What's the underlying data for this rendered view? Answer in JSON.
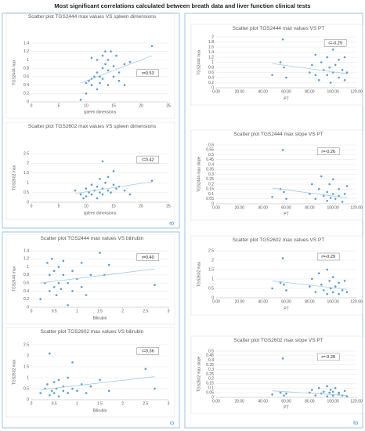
{
  "title": "Most significant correlations calculated between breath data and liver function clinical tests",
  "panels": [
    "a)",
    "b)",
    "c)"
  ],
  "chart_data": [
    {
      "type": "scatter",
      "title": "Scatter plot TGS2444 max values VS spleen dimensions",
      "xlabel": "spleen dimensions",
      "ylabel": "TGS2444 max",
      "annotation": "r=0.53",
      "color": "#5b9bd5",
      "trendline_color": "#9dc3e6",
      "xlim": [
        0,
        25
      ],
      "xticks": [
        0,
        5,
        10,
        15,
        20,
        25
      ],
      "ylim": [
        0,
        1.4
      ],
      "yticks": [
        0,
        0.2,
        0.4,
        0.6,
        0.8,
        1,
        1.2,
        1.4
      ],
      "x": [
        9,
        10,
        10,
        10.5,
        11,
        11,
        11,
        11.5,
        12,
        12,
        12,
        12.5,
        12.5,
        13,
        13,
        13,
        13.5,
        13.5,
        14,
        14,
        14,
        14.5,
        15,
        15,
        15.5,
        16,
        16,
        17,
        17,
        18,
        22
      ],
      "values": [
        0.05,
        0.2,
        0.45,
        0.5,
        0.55,
        0.4,
        1.05,
        0.6,
        0.3,
        0.7,
        1.0,
        0.45,
        0.6,
        0.8,
        1.1,
        0.55,
        0.9,
        1.2,
        0.75,
        1.0,
        0.4,
        1.2,
        0.85,
        0.6,
        1.1,
        0.7,
        0.5,
        0.9,
        0.4,
        0.95,
        1.33
      ],
      "trendline": {
        "x": [
          9,
          22
        ],
        "y": [
          0.45,
          1.1
        ]
      }
    },
    {
      "type": "scatter",
      "title": "Scatter plot TGS2602 max values VS spleen dimensions",
      "xlabel": "spleen dimensions",
      "ylabel": "TGS2602 max",
      "annotation": "r=0.42",
      "color": "#5b9bd5",
      "trendline_color": "#9dc3e6",
      "xlim": [
        0,
        25
      ],
      "xticks": [
        0,
        5,
        10,
        15,
        20,
        25
      ],
      "ylim": [
        0,
        2.5
      ],
      "yticks": [
        0,
        0.5,
        1,
        1.5,
        2,
        2.5
      ],
      "x": [
        8,
        9,
        9.5,
        10,
        10,
        10.5,
        11,
        11,
        11.5,
        12,
        12,
        12.5,
        12.5,
        13,
        13,
        13,
        13.5,
        14,
        14,
        14.5,
        15,
        15,
        15.5,
        16,
        17,
        18,
        22
      ],
      "values": [
        0.6,
        0.4,
        0.2,
        0.7,
        0.3,
        0.5,
        0.4,
        0.9,
        0.6,
        0.2,
        0.8,
        0.5,
        1.2,
        0.7,
        0.4,
        2.1,
        1.0,
        0.6,
        1.3,
        0.5,
        0.9,
        1.6,
        0.7,
        0.8,
        0.6,
        0.4,
        1.1
      ],
      "trendline": {
        "x": [
          8,
          22
        ],
        "y": [
          0.45,
          1.05
        ]
      }
    },
    {
      "type": "scatter",
      "title": "Scatter plot TGS2444 max values VS bilirubin",
      "xlabel": "Bilirubin",
      "ylabel": "TGS2444 max",
      "annotation": "r=0.40",
      "color": "#5b9bd5",
      "trendline_color": "#9dc3e6",
      "xlim": [
        0,
        3
      ],
      "xticks": [
        0,
        0.5,
        1,
        1.5,
        2,
        2.5,
        3
      ],
      "ylim": [
        0,
        1.4
      ],
      "yticks": [
        0,
        0.2,
        0.4,
        0.6,
        0.8,
        1,
        1.2,
        1.4
      ],
      "x": [
        0.2,
        0.3,
        0.35,
        0.4,
        0.4,
        0.45,
        0.5,
        0.5,
        0.55,
        0.6,
        0.6,
        0.65,
        0.7,
        0.7,
        0.8,
        0.8,
        0.9,
        0.9,
        1.0,
        1.1,
        1.1,
        1.2,
        1.3,
        1.5,
        1.6,
        1.7,
        2.7
      ],
      "values": [
        0.2,
        0.6,
        1.1,
        0.4,
        0.8,
        1.2,
        0.5,
        0.9,
        0.3,
        1.0,
        0.6,
        0.45,
        0.8,
        1.15,
        0.6,
        0.05,
        0.9,
        0.4,
        0.7,
        0.5,
        1.1,
        0.3,
        0.8,
        1.35,
        0.8,
        1.05,
        0.55
      ],
      "trendline": {
        "x": [
          0.2,
          2.7
        ],
        "y": [
          0.6,
          0.95
        ]
      }
    },
    {
      "type": "scatter",
      "title": "Scatter plot TGS2602 max values VS bilirubin",
      "xlabel": "Bilirubin",
      "ylabel": "TGS2602 max",
      "annotation": "r=0.36",
      "color": "#5b9bd5",
      "trendline_color": "#9dc3e6",
      "xlim": [
        0,
        3
      ],
      "xticks": [
        0,
        0.5,
        1,
        1.5,
        2,
        2.5,
        3
      ],
      "ylim": [
        0,
        2.5
      ],
      "yticks": [
        0,
        0.5,
        1,
        1.5,
        2,
        2.5
      ],
      "x": [
        0.2,
        0.3,
        0.35,
        0.4,
        0.4,
        0.45,
        0.5,
        0.5,
        0.55,
        0.6,
        0.6,
        0.7,
        0.7,
        0.8,
        0.8,
        0.9,
        0.9,
        1.0,
        1.1,
        1.2,
        1.3,
        1.5,
        1.7,
        2.5,
        2.7
      ],
      "values": [
        0.3,
        0.5,
        0.7,
        2.1,
        0.2,
        0.4,
        0.8,
        0.3,
        0.5,
        0.9,
        0.15,
        0.6,
        0.4,
        1.0,
        0.3,
        1.7,
        0.5,
        0.4,
        0.7,
        0.3,
        0.6,
        0.9,
        0.4,
        1.4,
        0.5
      ],
      "trendline": {
        "x": [
          0.2,
          2.7
        ],
        "y": [
          0.45,
          1.05
        ]
      }
    },
    {
      "type": "scatter",
      "title": "Scatter plot TGS2444 max values VS PT",
      "xlabel": "PT",
      "ylabel": "TGS2444 max",
      "annotation": "r=-0.29",
      "color": "#5b9bd5",
      "trendline_color": "#9dc3e6",
      "xlim": [
        0,
        120
      ],
      "xticks": [
        {
          "value": 0,
          "label": "0.00"
        },
        {
          "value": 20,
          "label": "20.00"
        },
        {
          "value": 40,
          "label": "40.00"
        },
        {
          "value": 60,
          "label": "60.00"
        },
        {
          "value": 80,
          "label": "80.00"
        },
        {
          "value": 100,
          "label": "100.00"
        },
        {
          "value": 120,
          "label": "120.00"
        }
      ],
      "ylim": [
        0,
        2
      ],
      "yticks": [
        0,
        0.2,
        0.4,
        0.6,
        0.8,
        1,
        1.2,
        1.4,
        1.6,
        1.8,
        2
      ],
      "x": [
        48,
        55,
        57,
        58,
        60,
        80,
        82,
        85,
        85,
        88,
        90,
        92,
        95,
        95,
        97,
        98,
        100,
        100,
        102,
        105,
        105,
        108,
        110,
        110,
        112
      ],
      "values": [
        0.5,
        1.0,
        1.9,
        0.8,
        0.4,
        0.6,
        0.9,
        1.3,
        0.5,
        0.3,
        1.0,
        0.7,
        1.2,
        0.5,
        0.8,
        0.2,
        1.5,
        0.6,
        0.9,
        0.4,
        1.1,
        0.7,
        0.3,
        1.2,
        0.6
      ],
      "trendline": {
        "x": [
          48,
          112
        ],
        "y": [
          0.95,
          0.55
        ]
      }
    },
    {
      "type": "scatter",
      "title": "Scatter plot TGS2444 max slope VS PT",
      "xlabel": "PT",
      "ylabel": "TGS2444 max slope",
      "annotation": "r=-0.26",
      "color": "#5b9bd5",
      "trendline_color": "#9dc3e6",
      "xlim": [
        0,
        120
      ],
      "xticks": [
        {
          "value": 0,
          "label": "0.00"
        },
        {
          "value": 20,
          "label": "20.00"
        },
        {
          "value": 40,
          "label": "40.00"
        },
        {
          "value": 60,
          "label": "60.00"
        },
        {
          "value": 80,
          "label": "80.00"
        },
        {
          "value": 100,
          "label": "100.00"
        },
        {
          "value": 120,
          "label": "120.00"
        }
      ],
      "ylim": [
        0,
        0.6
      ],
      "yticks": [
        0,
        0.05,
        0.1,
        0.15,
        0.2,
        0.25,
        0.3,
        0.35,
        0.4,
        0.45,
        0.5,
        0.55,
        0.6
      ],
      "x": [
        48,
        55,
        57,
        58,
        60,
        80,
        82,
        85,
        88,
        90,
        92,
        95,
        95,
        97,
        98,
        100,
        100,
        102,
        105,
        105,
        108,
        110,
        112
      ],
      "values": [
        0.07,
        0.15,
        0.55,
        0.12,
        0.05,
        0.1,
        0.2,
        0.05,
        0.15,
        0.28,
        0.08,
        0.12,
        0.03,
        0.2,
        0.06,
        0.1,
        0.25,
        0.05,
        0.15,
        0.08,
        0.02,
        0.1,
        0.18
      ],
      "trendline": {
        "x": [
          48,
          112
        ],
        "y": [
          0.16,
          0.06
        ]
      }
    },
    {
      "type": "scatter",
      "title": "Scatter plot TGS2602 max values VS PT",
      "xlabel": "PT",
      "ylabel": "TGS2602 max",
      "annotation": "r=-0.29",
      "color": "#5b9bd5",
      "trendline_color": "#9dc3e6",
      "xlim": [
        0,
        120
      ],
      "xticks": [
        {
          "value": 0,
          "label": "0.00"
        },
        {
          "value": 20,
          "label": "20.00"
        },
        {
          "value": 40,
          "label": "40.00"
        },
        {
          "value": 60,
          "label": "60.00"
        },
        {
          "value": 80,
          "label": "80.00"
        },
        {
          "value": 100,
          "label": "100.00"
        },
        {
          "value": 120,
          "label": "120.00"
        }
      ],
      "ylim": [
        0,
        2.5
      ],
      "yticks": [
        0,
        0.5,
        1,
        1.5,
        2,
        2.5
      ],
      "x": [
        48,
        55,
        57,
        58,
        60,
        80,
        82,
        85,
        88,
        90,
        92,
        95,
        95,
        97,
        98,
        100,
        100,
        102,
        105,
        105,
        108,
        110,
        112
      ],
      "values": [
        0.5,
        0.8,
        2.1,
        0.7,
        0.4,
        0.6,
        1.0,
        0.3,
        1.3,
        0.7,
        0.4,
        1.5,
        0.2,
        0.9,
        0.5,
        0.3,
        1.1,
        0.6,
        0.2,
        0.8,
        0.4,
        0.9,
        0.3
      ],
      "trendline": {
        "x": [
          48,
          112
        ],
        "y": [
          0.9,
          0.45
        ]
      }
    },
    {
      "type": "scatter",
      "title": "Scatter plot TGS2602 max slope VS PT",
      "xlabel": "PT",
      "ylabel": "TGS2602 max slope",
      "annotation": "r=-0.28",
      "color": "#5b9bd5",
      "trendline_color": "#9dc3e6",
      "xlim": [
        0,
        120
      ],
      "xticks": [
        {
          "value": 0,
          "label": "0.00"
        },
        {
          "value": 20,
          "label": "20.00"
        },
        {
          "value": 40,
          "label": "40.00"
        },
        {
          "value": 60,
          "label": "60.00"
        },
        {
          "value": 80,
          "label": "80.00"
        },
        {
          "value": 100,
          "label": "100.00"
        },
        {
          "value": 120,
          "label": "120.00"
        }
      ],
      "ylim": [
        0,
        0.5
      ],
      "yticks": [
        0,
        0.05,
        0.1,
        0.15,
        0.2,
        0.25,
        0.3,
        0.35,
        0.4,
        0.45,
        0.5
      ],
      "x": [
        48,
        55,
        57,
        58,
        60,
        80,
        82,
        85,
        88,
        90,
        92,
        95,
        95,
        97,
        98,
        100,
        100,
        102,
        105,
        105,
        108,
        110,
        112
      ],
      "values": [
        0.03,
        0.05,
        0.42,
        0.02,
        0.04,
        0.05,
        0.08,
        0.02,
        0.1,
        0.04,
        0.06,
        0.12,
        0.01,
        0.05,
        0.08,
        0.02,
        0.06,
        0.1,
        0.03,
        0.05,
        0.02,
        0.07,
        0.01
      ],
      "trendline": {
        "x": [
          48,
          112
        ],
        "y": [
          0.07,
          0.02
        ]
      }
    }
  ]
}
